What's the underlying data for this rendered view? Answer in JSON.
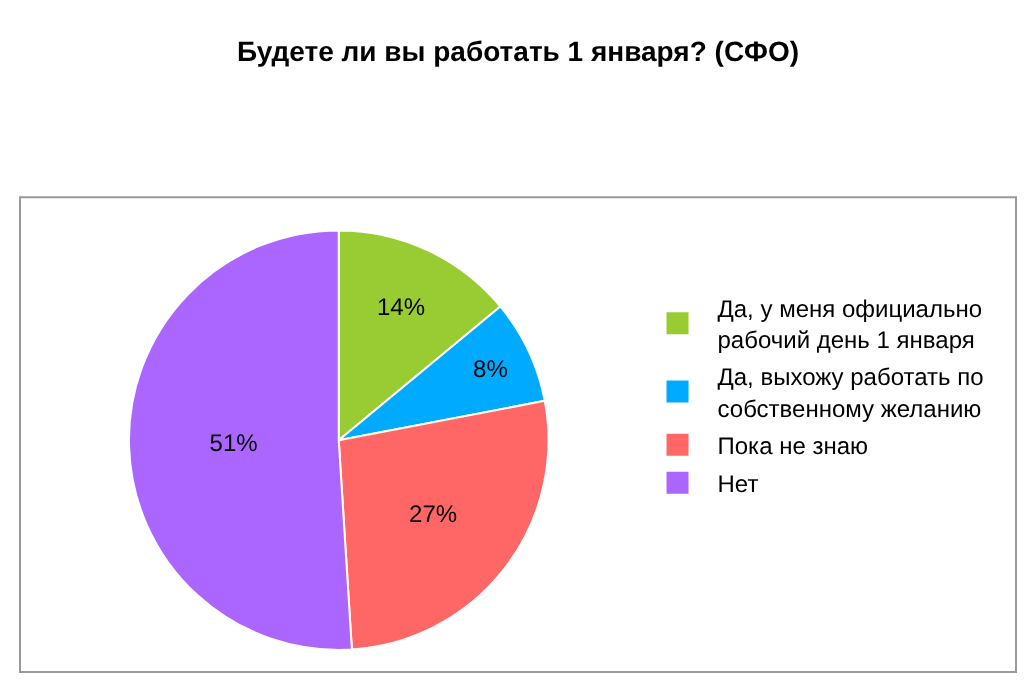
{
  "chart_data": {
    "type": "pie",
    "title": "Будете ли вы работать 1 января? (СФО)",
    "categories": [
      "Да, у меня официально рабочий день 1 января",
      "Да, выхожу работать по собственному желанию",
      "Пока не знаю",
      "Нет"
    ],
    "values": [
      14,
      8,
      27,
      51
    ],
    "value_labels": [
      "14%",
      "8%",
      "27%",
      "51%"
    ],
    "colors": [
      "#99cc33",
      "#00aaff",
      "#ff6666",
      "#aa66ff"
    ],
    "legend": "right"
  }
}
